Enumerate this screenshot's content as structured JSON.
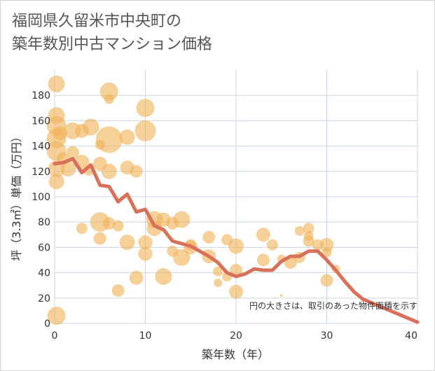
{
  "title_line1": "福岡県久留米市中央町の",
  "title_line2": "築年数別中古マンション価格",
  "chart_data": {
    "type": "scatter",
    "xlabel": "築年数（年）",
    "ylabel": "坪（3.3㎡）単価（万円）",
    "xlim": [
      0,
      40
    ],
    "ylim": [
      0,
      200
    ],
    "xticks": [
      "0",
      "10",
      "20",
      "30",
      "40"
    ],
    "yticks": [
      "0",
      "20",
      "40",
      "60",
      "80",
      "100",
      "120",
      "140",
      "160",
      "180"
    ],
    "grid": true,
    "note": "円の大きさは、取引のあった物件面積を示す",
    "colors": {
      "bubble": "#f0b35a",
      "line": "#d9705a",
      "grid": "#c9d7e6"
    },
    "line": {
      "x": [
        0,
        1,
        2,
        3,
        4,
        5,
        6,
        7,
        8,
        9,
        10,
        11,
        12,
        13,
        14,
        15,
        16,
        17,
        18,
        19,
        20,
        21,
        22,
        23,
        24,
        25,
        26,
        27,
        28,
        29,
        30,
        31,
        32,
        33,
        34,
        35,
        36,
        37,
        38,
        39,
        40
      ],
      "y": [
        126,
        127,
        130,
        119,
        125,
        109,
        108,
        96,
        102,
        88,
        90,
        77,
        74,
        65,
        63,
        61,
        57,
        53,
        48,
        40,
        37,
        39,
        43,
        42,
        42,
        49,
        53,
        53,
        57,
        57,
        50,
        42,
        33,
        25,
        19,
        16,
        13,
        10,
        7,
        4,
        1
      ]
    },
    "points": [
      {
        "x": 0.2,
        "y": 189,
        "s": 12
      },
      {
        "x": 0.2,
        "y": 164,
        "s": 12
      },
      {
        "x": 0.2,
        "y": 156,
        "s": 14
      },
      {
        "x": 0.2,
        "y": 146,
        "s": 14
      },
      {
        "x": 0.2,
        "y": 136,
        "s": 14
      },
      {
        "x": 0.2,
        "y": 122,
        "s": 12
      },
      {
        "x": 0.2,
        "y": 112,
        "s": 11
      },
      {
        "x": 0.2,
        "y": 6,
        "s": 13
      },
      {
        "x": 0.6,
        "y": 150,
        "s": 10
      },
      {
        "x": 0.9,
        "y": 130,
        "s": 9
      },
      {
        "x": 1.5,
        "y": 122,
        "s": 11
      },
      {
        "x": 2.0,
        "y": 152,
        "s": 12
      },
      {
        "x": 2.0,
        "y": 135,
        "s": 9
      },
      {
        "x": 3.0,
        "y": 152,
        "s": 10
      },
      {
        "x": 3.0,
        "y": 127,
        "s": 11
      },
      {
        "x": 3.0,
        "y": 75,
        "s": 8
      },
      {
        "x": 3.8,
        "y": 121,
        "s": 8
      },
      {
        "x": 4.0,
        "y": 155,
        "s": 12
      },
      {
        "x": 5.0,
        "y": 141,
        "s": 7
      },
      {
        "x": 5.0,
        "y": 126,
        "s": 10
      },
      {
        "x": 5.0,
        "y": 80,
        "s": 14
      },
      {
        "x": 5.0,
        "y": 67,
        "s": 9
      },
      {
        "x": 6.0,
        "y": 183,
        "s": 13
      },
      {
        "x": 6.0,
        "y": 177,
        "s": 7
      },
      {
        "x": 6.0,
        "y": 145,
        "s": 19
      },
      {
        "x": 6.0,
        "y": 120,
        "s": 11
      },
      {
        "x": 6.0,
        "y": 79,
        "s": 9
      },
      {
        "x": 7.0,
        "y": 77,
        "s": 8
      },
      {
        "x": 7.0,
        "y": 26,
        "s": 9
      },
      {
        "x": 8.0,
        "y": 147,
        "s": 11
      },
      {
        "x": 8.0,
        "y": 123,
        "s": 10
      },
      {
        "x": 8.0,
        "y": 64,
        "s": 11
      },
      {
        "x": 9.0,
        "y": 120,
        "s": 9
      },
      {
        "x": 9.0,
        "y": 36,
        "s": 10
      },
      {
        "x": 10.0,
        "y": 170,
        "s": 13
      },
      {
        "x": 10.0,
        "y": 152,
        "s": 15
      },
      {
        "x": 10.0,
        "y": 64,
        "s": 10
      },
      {
        "x": 10.0,
        "y": 55,
        "s": 10
      },
      {
        "x": 11.0,
        "y": 82,
        "s": 12
      },
      {
        "x": 11.0,
        "y": 75,
        "s": 11
      },
      {
        "x": 12.0,
        "y": 82,
        "s": 10
      },
      {
        "x": 12.0,
        "y": 37,
        "s": 12
      },
      {
        "x": 13.0,
        "y": 79,
        "s": 9
      },
      {
        "x": 13.0,
        "y": 57,
        "s": 8
      },
      {
        "x": 14.0,
        "y": 82,
        "s": 12
      },
      {
        "x": 14.0,
        "y": 52,
        "s": 12
      },
      {
        "x": 15.0,
        "y": 62,
        "s": 8
      },
      {
        "x": 15.0,
        "y": 60,
        "s": 10
      },
      {
        "x": 17.0,
        "y": 68,
        "s": 9
      },
      {
        "x": 17.0,
        "y": 53,
        "s": 10
      },
      {
        "x": 18.0,
        "y": 41,
        "s": 7
      },
      {
        "x": 18.0,
        "y": 32,
        "s": 6
      },
      {
        "x": 19.0,
        "y": 66,
        "s": 8
      },
      {
        "x": 19.0,
        "y": 37,
        "s": 7
      },
      {
        "x": 20.0,
        "y": 61,
        "s": 11
      },
      {
        "x": 20.0,
        "y": 42,
        "s": 9
      },
      {
        "x": 20.0,
        "y": 25,
        "s": 10
      },
      {
        "x": 23.0,
        "y": 70,
        "s": 10
      },
      {
        "x": 23.0,
        "y": 50,
        "s": 9
      },
      {
        "x": 24.0,
        "y": 62,
        "s": 8
      },
      {
        "x": 25.0,
        "y": 22,
        "s": 2
      },
      {
        "x": 25.0,
        "y": 51,
        "s": 6
      },
      {
        "x": 26.0,
        "y": 48,
        "s": 9
      },
      {
        "x": 27.0,
        "y": 73,
        "s": 7
      },
      {
        "x": 27.0,
        "y": 52,
        "s": 8
      },
      {
        "x": 28.0,
        "y": 75,
        "s": 8
      },
      {
        "x": 28.0,
        "y": 69,
        "s": 7
      },
      {
        "x": 28.0,
        "y": 65,
        "s": 8
      },
      {
        "x": 29.0,
        "y": 62,
        "s": 8
      },
      {
        "x": 30.0,
        "y": 62,
        "s": 10
      },
      {
        "x": 30.0,
        "y": 56,
        "s": 7
      },
      {
        "x": 30.0,
        "y": 34,
        "s": 9
      },
      {
        "x": 31.0,
        "y": 43,
        "s": 6
      }
    ]
  }
}
